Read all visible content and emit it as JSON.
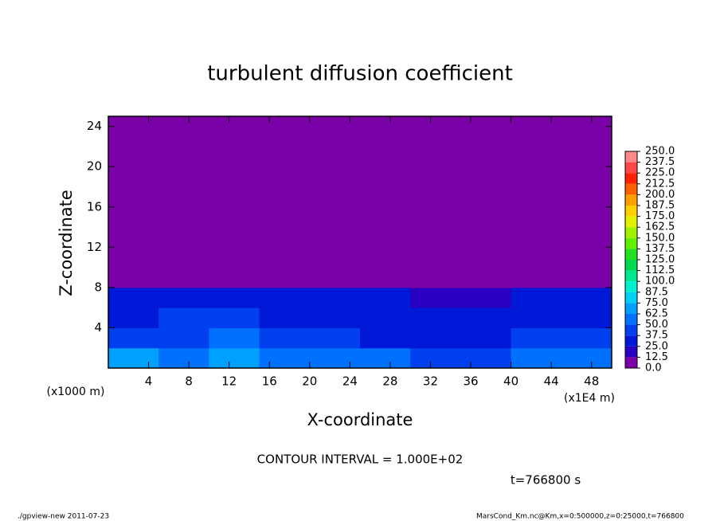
{
  "chart_data": {
    "type": "contour",
    "title": "turbulent diffusion coefficient",
    "x_label": "X-coordinate",
    "y_label": "Z-coordinate",
    "y_unit_label": "(x1000 m)",
    "x_unit_label": "(x1E4 m)",
    "annotation": "CONTOUR INTERVAL = 1.000E+02",
    "time_label": "t=766800 s",
    "footer_left": "./gpview-new   2011-07-23",
    "footer_right": "MarsCond_Km.nc@Km,x=0:500000,z=0:25000,t=766800",
    "background_color": "#7b00a8",
    "xlim": [
      0,
      50
    ],
    "ylim": [
      0,
      25
    ],
    "xticks": [
      4,
      8,
      12,
      16,
      20,
      24,
      28,
      32,
      36,
      40,
      44,
      48
    ],
    "yticks": [
      4,
      8,
      12,
      16,
      20,
      24
    ],
    "x": [
      0,
      5,
      10,
      15,
      20,
      25,
      30,
      35,
      40,
      45,
      50
    ],
    "z": [
      0,
      2,
      4,
      6,
      8,
      25
    ],
    "values": [
      [
        70,
        60,
        65,
        55,
        60,
        50,
        45,
        40,
        60,
        55
      ],
      [
        45,
        40,
        50,
        40,
        45,
        35,
        30,
        30,
        40,
        40
      ],
      [
        35,
        40,
        40,
        35,
        35,
        30,
        25,
        25,
        35,
        35
      ],
      [
        30,
        35,
        30,
        30,
        30,
        25,
        20,
        20,
        30,
        30
      ],
      [
        0,
        0,
        0,
        0,
        0,
        0,
        0,
        0,
        0,
        0
      ]
    ],
    "colorbar_ticks": [
      {
        "value": 0,
        "label": "0.0"
      },
      {
        "value": 12.5,
        "label": "12.5"
      },
      {
        "value": 25,
        "label": "25.0"
      },
      {
        "value": 37.5,
        "label": "37.5"
      },
      {
        "value": 50,
        "label": "50.0"
      },
      {
        "value": 62.5,
        "label": "62.5"
      },
      {
        "value": 75,
        "label": "75.0"
      },
      {
        "value": 87.5,
        "label": "87.5"
      },
      {
        "value": 100,
        "label": "100.0"
      },
      {
        "value": 112.5,
        "label": "112.5"
      },
      {
        "value": 125,
        "label": "125.0"
      },
      {
        "value": 137.5,
        "label": "137.5"
      },
      {
        "value": 150,
        "label": "150.0"
      },
      {
        "value": 162.5,
        "label": "162.5"
      },
      {
        "value": 175,
        "label": "175.0"
      },
      {
        "value": 187.5,
        "label": "187.5"
      },
      {
        "value": 200,
        "label": "200.0"
      },
      {
        "value": 212.5,
        "label": "212.5"
      },
      {
        "value": 225,
        "label": "225.0"
      },
      {
        "value": 237.5,
        "label": "237.5"
      },
      {
        "value": 250,
        "label": "250.0"
      }
    ],
    "colors": [
      "#7b00a8",
      "#2a00c0",
      "#0018d8",
      "#0040ee",
      "#0070ff",
      "#00a0ff",
      "#00d0f8",
      "#00f0d0",
      "#00e890",
      "#00d850",
      "#20e020",
      "#60f000",
      "#a0f000",
      "#e0f000",
      "#ffd000",
      "#ffa000",
      "#ff6000",
      "#ff2000",
      "#ff4848",
      "#ff8888"
    ]
  }
}
